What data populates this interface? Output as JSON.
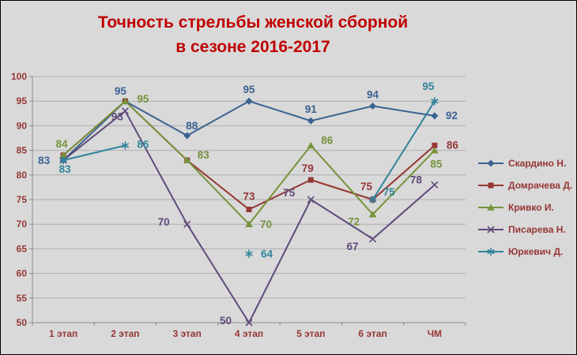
{
  "chart_data": {
    "type": "line",
    "title": "Точность стрельбы женской сборной в сезоне 2016-2017",
    "title_lines": [
      "Точность стрельбы женской сборной",
      "в сезоне 2016-2017"
    ],
    "categories": [
      "1 этап",
      "2 этап",
      "3 этап",
      "4 этап",
      "5 этап",
      "6 этап",
      "ЧМ"
    ],
    "ylim": [
      50,
      100
    ],
    "ytick_step": 5,
    "grid": true,
    "legend_position": "right",
    "series": [
      {
        "name": "Скардино Н.",
        "marker": "diamond",
        "color": "#3B6291",
        "values": [
          83,
          95,
          88,
          95,
          91,
          94,
          92
        ],
        "point_labels": [
          "83",
          "95",
          "88",
          "95",
          "91",
          "94",
          "92"
        ]
      },
      {
        "name": "Домрачева Д.",
        "marker": "square",
        "color": "#953734",
        "values": [
          84,
          95,
          83,
          73,
          79,
          75,
          86
        ],
        "point_labels": [
          "",
          "",
          "",
          "73",
          "79",
          "75",
          "86"
        ]
      },
      {
        "name": "Кривко И.",
        "marker": "triangle",
        "color": "#76933C",
        "values": [
          84,
          95,
          83,
          70,
          86,
          72,
          85
        ],
        "point_labels": [
          "84",
          "95",
          "83",
          "70",
          "86",
          "72",
          "85"
        ]
      },
      {
        "name": "Писарева Н.",
        "marker": "x",
        "color": "#604A7B",
        "values": [
          83,
          93,
          70,
          50,
          75,
          67,
          78
        ],
        "point_labels": [
          "",
          "93",
          "70",
          "50",
          "75",
          "67",
          "78"
        ]
      },
      {
        "name": "Юркевич Д.",
        "marker": "asterisk",
        "color": "#31849B",
        "values": [
          83,
          86,
          null,
          64,
          null,
          75,
          95
        ],
        "point_labels": [
          "83",
          "86",
          "",
          "64",
          "",
          "75",
          "95"
        ]
      }
    ],
    "colors": {
      "title": "#C00000",
      "axis_text": "#953734",
      "background": "#D9D9D9",
      "gridline": "#AEAEAE",
      "axis_line": "#8A8A8A",
      "border": "#000000"
    }
  }
}
